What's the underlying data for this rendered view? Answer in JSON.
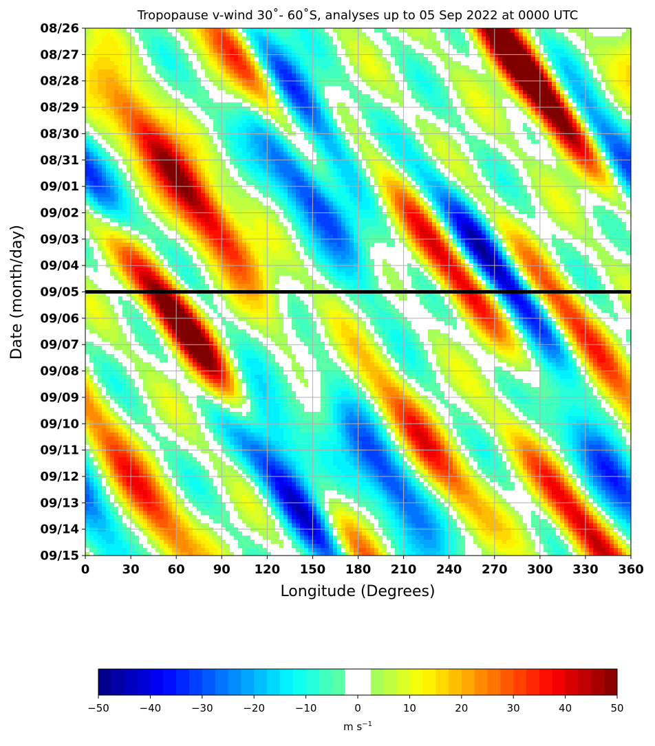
{
  "chart_data": {
    "type": "heatmap",
    "title": "Tropopause v-wind 30˚- 60˚S, analyses up to 05 Sep 2022 at 0000 UTC",
    "xlabel": "Longitude (Degrees)",
    "ylabel": "Date (month/day)",
    "x_ticks": [
      "0",
      "30",
      "60",
      "90",
      "120",
      "150",
      "180",
      "210",
      "240",
      "270",
      "300",
      "330",
      "360"
    ],
    "x_range": [
      0,
      360
    ],
    "y_ticks": [
      "08/26",
      "08/27",
      "08/28",
      "08/29",
      "08/30",
      "08/31",
      "09/01",
      "09/02",
      "09/03",
      "09/04",
      "09/05",
      "09/06",
      "09/07",
      "09/08",
      "09/09",
      "09/10",
      "09/11",
      "09/12",
      "09/13",
      "09/14",
      "09/15"
    ],
    "y_range": [
      "08/26",
      "09/15"
    ],
    "y_inverted": true,
    "grid": true,
    "analysis_line_date": "09/05",
    "colorbar": {
      "label_main": "m s",
      "label_exp": "−1",
      "ticks": [
        "−50",
        "−40",
        "−30",
        "−20",
        "−10",
        "0",
        "10",
        "20",
        "30",
        "40",
        "50"
      ],
      "range": [
        -50,
        50
      ],
      "step": 2.5,
      "zero_band": [
        -2.5,
        2.5
      ],
      "colormap": "jet"
    },
    "wave_features": [
      {
        "lon": 100,
        "date": "08/27",
        "value": 42
      },
      {
        "lon": 135,
        "date": "08/28",
        "value": -38
      },
      {
        "lon": 40,
        "date": "08/30",
        "value": 30
      },
      {
        "lon": 80,
        "date": "09/02",
        "value": 38
      },
      {
        "lon": 145,
        "date": "09/01",
        "value": -40
      },
      {
        "lon": 240,
        "date": "09/04",
        "value": 38
      },
      {
        "lon": 270,
        "date": "09/04",
        "value": -42
      },
      {
        "lon": 280,
        "date": "08/27",
        "value": 40
      },
      {
        "lon": 310,
        "date": "08/29",
        "value": 42
      },
      {
        "lon": 350,
        "date": "08/31",
        "value": -42
      },
      {
        "lon": 60,
        "date": "09/06",
        "value": 30
      },
      {
        "lon": 75,
        "date": "09/07",
        "value": 40
      },
      {
        "lon": 120,
        "date": "09/10",
        "value": -35
      },
      {
        "lon": 140,
        "date": "09/13",
        "value": -40
      },
      {
        "lon": 200,
        "date": "09/12",
        "value": -40
      },
      {
        "lon": 225,
        "date": "09/11",
        "value": 35
      },
      {
        "lon": 40,
        "date": "09/13",
        "value": 38
      },
      {
        "lon": 180,
        "date": "09/15",
        "value": 30
      },
      {
        "lon": 320,
        "date": "09/06",
        "value": 30
      },
      {
        "lon": 350,
        "date": "09/12",
        "value": -38
      },
      {
        "lon": 330,
        "date": "09/14",
        "value": 38
      }
    ]
  }
}
